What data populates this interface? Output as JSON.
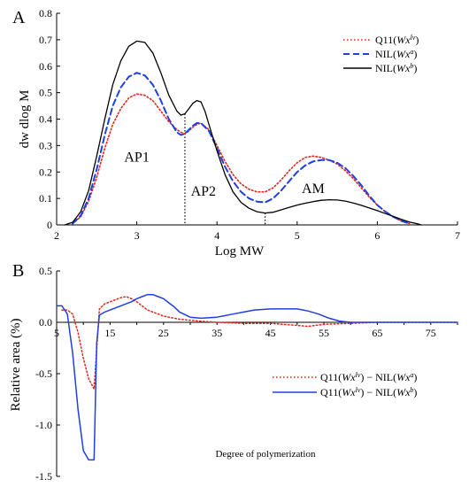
{
  "chart_data": [
    {
      "panel_label": "A",
      "type": "line",
      "xlabel": "Log MW",
      "ylabel": "dw  dlog M",
      "xlim": [
        2,
        7
      ],
      "ylim": [
        0,
        0.8
      ],
      "xticks": [
        "2",
        "3",
        "4",
        "5",
        "6",
        "7"
      ],
      "yticks": [
        "0",
        "0.1",
        "0.2",
        "0.3",
        "0.4",
        "0.5",
        "0.6",
        "0.7",
        "0.8"
      ],
      "grid": false,
      "legend_position": "top-right",
      "annotations": [
        {
          "text": "AP1",
          "x": 3.0,
          "y": 0.24
        },
        {
          "text": "AP2",
          "x": 3.83,
          "y": 0.11
        },
        {
          "text": "AM",
          "x": 5.2,
          "y": 0.12
        }
      ],
      "dividers_x": [
        3.6,
        4.6
      ],
      "series": [
        {
          "base": "Q11(",
          "sym": "Wx",
          "sup": "lv",
          "tail": ")",
          "color": "#e8261c",
          "style": "dotted",
          "x": [
            2.2,
            2.3,
            2.4,
            2.5,
            2.6,
            2.7,
            2.8,
            2.9,
            3.0,
            3.1,
            3.2,
            3.3,
            3.4,
            3.5,
            3.55,
            3.6,
            3.65,
            3.7,
            3.75,
            3.8,
            3.9,
            4.0,
            4.1,
            4.2,
            4.3,
            4.4,
            4.5,
            4.6,
            4.7,
            4.8,
            4.9,
            5.0,
            5.1,
            5.2,
            5.3,
            5.4,
            5.5,
            5.6,
            5.7,
            5.8,
            5.9,
            6.0,
            6.1,
            6.2,
            6.3,
            6.4
          ],
          "y": [
            0.005,
            0.03,
            0.09,
            0.18,
            0.29,
            0.38,
            0.44,
            0.48,
            0.495,
            0.49,
            0.47,
            0.43,
            0.39,
            0.36,
            0.35,
            0.345,
            0.355,
            0.37,
            0.38,
            0.385,
            0.36,
            0.3,
            0.24,
            0.19,
            0.155,
            0.135,
            0.125,
            0.125,
            0.14,
            0.17,
            0.205,
            0.235,
            0.255,
            0.26,
            0.255,
            0.245,
            0.23,
            0.205,
            0.175,
            0.14,
            0.105,
            0.075,
            0.05,
            0.03,
            0.015,
            0.005
          ]
        },
        {
          "base": "NIL(",
          "sym": "Wx",
          "sup": "a",
          "tail": ")",
          "color": "#1f3fe0",
          "style": "dashed",
          "x": [
            2.2,
            2.3,
            2.4,
            2.5,
            2.6,
            2.7,
            2.8,
            2.9,
            3.0,
            3.1,
            3.2,
            3.3,
            3.4,
            3.5,
            3.55,
            3.6,
            3.65,
            3.7,
            3.75,
            3.8,
            3.9,
            4.0,
            4.1,
            4.2,
            4.3,
            4.4,
            4.5,
            4.6,
            4.7,
            4.8,
            4.9,
            5.0,
            5.1,
            5.2,
            5.3,
            5.4,
            5.5,
            5.6,
            5.7,
            5.8,
            5.9,
            6.0,
            6.1,
            6.2,
            6.3,
            6.4
          ],
          "y": [
            0.005,
            0.035,
            0.1,
            0.21,
            0.34,
            0.45,
            0.52,
            0.56,
            0.575,
            0.565,
            0.53,
            0.47,
            0.4,
            0.35,
            0.34,
            0.345,
            0.36,
            0.375,
            0.385,
            0.385,
            0.355,
            0.29,
            0.22,
            0.165,
            0.125,
            0.1,
            0.088,
            0.085,
            0.1,
            0.13,
            0.165,
            0.2,
            0.225,
            0.24,
            0.245,
            0.245,
            0.235,
            0.215,
            0.185,
            0.15,
            0.11,
            0.075,
            0.05,
            0.03,
            0.015,
            0.005
          ]
        },
        {
          "base": "NIL(",
          "sym": "Wx",
          "sup": "b",
          "tail": ")",
          "color": "#000000",
          "style": "solid",
          "x": [
            2.1,
            2.2,
            2.3,
            2.4,
            2.5,
            2.6,
            2.7,
            2.8,
            2.9,
            3.0,
            3.1,
            3.2,
            3.3,
            3.4,
            3.5,
            3.55,
            3.6,
            3.65,
            3.7,
            3.75,
            3.8,
            3.85,
            3.9,
            4.0,
            4.1,
            4.2,
            4.3,
            4.4,
            4.5,
            4.6,
            4.7,
            4.8,
            4.9,
            5.0,
            5.1,
            5.2,
            5.3,
            5.4,
            5.5,
            5.6,
            5.7,
            5.8,
            5.9,
            6.0,
            6.1,
            6.2,
            6.3,
            6.4,
            6.5,
            6.55
          ],
          "y": [
            0.0,
            0.01,
            0.05,
            0.13,
            0.26,
            0.4,
            0.53,
            0.62,
            0.675,
            0.695,
            0.69,
            0.65,
            0.575,
            0.49,
            0.43,
            0.415,
            0.42,
            0.44,
            0.46,
            0.47,
            0.465,
            0.43,
            0.38,
            0.28,
            0.19,
            0.125,
            0.085,
            0.063,
            0.05,
            0.045,
            0.048,
            0.057,
            0.066,
            0.075,
            0.082,
            0.088,
            0.093,
            0.095,
            0.094,
            0.09,
            0.083,
            0.074,
            0.064,
            0.054,
            0.043,
            0.032,
            0.021,
            0.011,
            0.004,
            0.0
          ]
        }
      ]
    },
    {
      "panel_label": "B",
      "type": "line",
      "xlabel": "Degree of polymerization",
      "ylabel": "Relative area (%)",
      "xlim": [
        5,
        80
      ],
      "ylim": [
        -1.5,
        0.5
      ],
      "xticks": [
        "5",
        "15",
        "25",
        "35",
        "45",
        "55",
        "65",
        "75"
      ],
      "yticks": [
        "0.5",
        "0.0",
        "-0.5",
        "-1.0",
        "-1.5"
      ],
      "grid": false,
      "legend_position": "bottom-right",
      "series": [
        {
          "base": "Q11(",
          "sym": "Wx",
          "sup": "lv",
          "tail": ") − NIL(",
          "sym2": "Wx",
          "sup2": "a",
          "tail2": ")",
          "color": "#e8261c",
          "style": "dotted",
          "x": [
            6,
            7,
            8,
            9,
            10,
            11,
            12,
            13,
            14,
            15,
            16,
            17,
            18,
            19,
            20,
            21,
            22,
            23,
            24,
            25,
            26,
            27,
            28,
            30,
            32,
            35,
            40,
            45,
            50,
            52,
            55,
            60,
            65,
            70,
            75,
            80
          ],
          "y": [
            0.12,
            0.12,
            0.08,
            -0.1,
            -0.35,
            -0.55,
            -0.65,
            0.13,
            0.18,
            0.2,
            0.22,
            0.24,
            0.25,
            0.23,
            0.2,
            0.16,
            0.12,
            0.1,
            0.08,
            0.06,
            0.05,
            0.04,
            0.03,
            0.02,
            0.01,
            0.0,
            -0.01,
            -0.01,
            -0.03,
            -0.04,
            -0.02,
            -0.01,
            0.0,
            0.0,
            0.0,
            0.0
          ]
        },
        {
          "base": "Q11(",
          "sym": "Wx",
          "sup": "lv",
          "tail": ") − NIL(",
          "sym2": "Wx",
          "sup2": "b",
          "tail2": ")",
          "color": "#1f3fe0",
          "style": "solid",
          "x": [
            5,
            6,
            7,
            8,
            9,
            10,
            11,
            12,
            12.5,
            13,
            14,
            15,
            16,
            17,
            18,
            19,
            20,
            21,
            22,
            23,
            24,
            25,
            26,
            27,
            28,
            30,
            32,
            35,
            38,
            40,
            42,
            45,
            48,
            50,
            52,
            54,
            56,
            58,
            60,
            65,
            70,
            75,
            80
          ],
          "y": [
            0.16,
            0.16,
            0.08,
            -0.3,
            -0.85,
            -1.25,
            -1.34,
            -1.34,
            -0.2,
            0.07,
            0.1,
            0.12,
            0.14,
            0.16,
            0.18,
            0.2,
            0.23,
            0.25,
            0.27,
            0.27,
            0.25,
            0.23,
            0.19,
            0.15,
            0.1,
            0.05,
            0.04,
            0.05,
            0.08,
            0.1,
            0.12,
            0.13,
            0.13,
            0.13,
            0.11,
            0.08,
            0.04,
            0.01,
            0.0,
            0.0,
            0.0,
            0.0,
            0.0
          ]
        }
      ]
    }
  ]
}
